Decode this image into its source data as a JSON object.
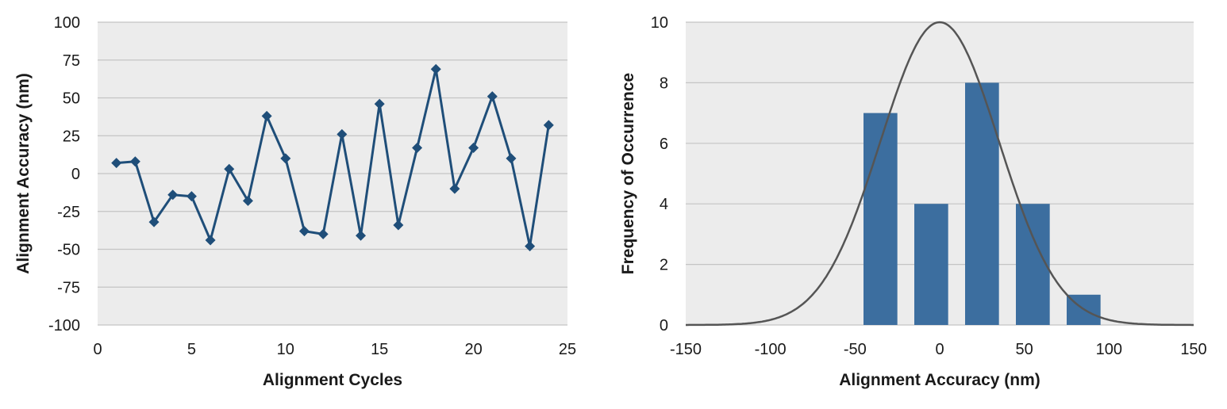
{
  "chart_data": [
    {
      "type": "line",
      "xlabel": "Alignment Cycles",
      "ylabel": "Alignment Accuracy (nm)",
      "xlim": [
        0,
        25
      ],
      "ylim": [
        -100,
        100
      ],
      "xticks": [
        "0",
        "5",
        "10",
        "15",
        "20",
        "25"
      ],
      "yticks": [
        "-100",
        "-75",
        "-50",
        "-25",
        "0",
        "25",
        "50",
        "75",
        "100"
      ],
      "grid": "horizontal",
      "color": "#1f4e79",
      "marker": "diamond",
      "series": [
        {
          "x": [
            1,
            2,
            3,
            4,
            5,
            6,
            7,
            8,
            9,
            10,
            11,
            12,
            13,
            14,
            15,
            16,
            17,
            18,
            19,
            20,
            21,
            22,
            23,
            24
          ],
          "values": [
            7,
            8,
            -32,
            -14,
            -15,
            -44,
            3,
            -18,
            38,
            10,
            -38,
            -40,
            26,
            -41,
            46,
            -34,
            17,
            69,
            -10,
            17,
            51,
            10,
            -48,
            32
          ]
        }
      ]
    },
    {
      "type": "bar",
      "xlabel": "Alignment Accuracy (nm)",
      "ylabel": "Frequency of Occurrence",
      "xlim": [
        -150,
        150
      ],
      "ylim": [
        0,
        10
      ],
      "xticks": [
        "-150",
        "-100",
        "-50",
        "0",
        "50",
        "100",
        "150"
      ],
      "yticks": [
        "0",
        "2",
        "4",
        "6",
        "8",
        "10"
      ],
      "grid": "horizontal",
      "bar_color": "#3c6e9f",
      "curve_color": "#555555",
      "bars": [
        {
          "x": -35,
          "value": 7
        },
        {
          "x": -5,
          "value": 4
        },
        {
          "x": 25,
          "value": 8
        },
        {
          "x": 55,
          "value": 4
        },
        {
          "x": 85,
          "value": 1
        }
      ],
      "bar_width": 20,
      "curve": {
        "type": "normal",
        "mean": 0,
        "sigma": 35,
        "peak": 10
      }
    }
  ]
}
